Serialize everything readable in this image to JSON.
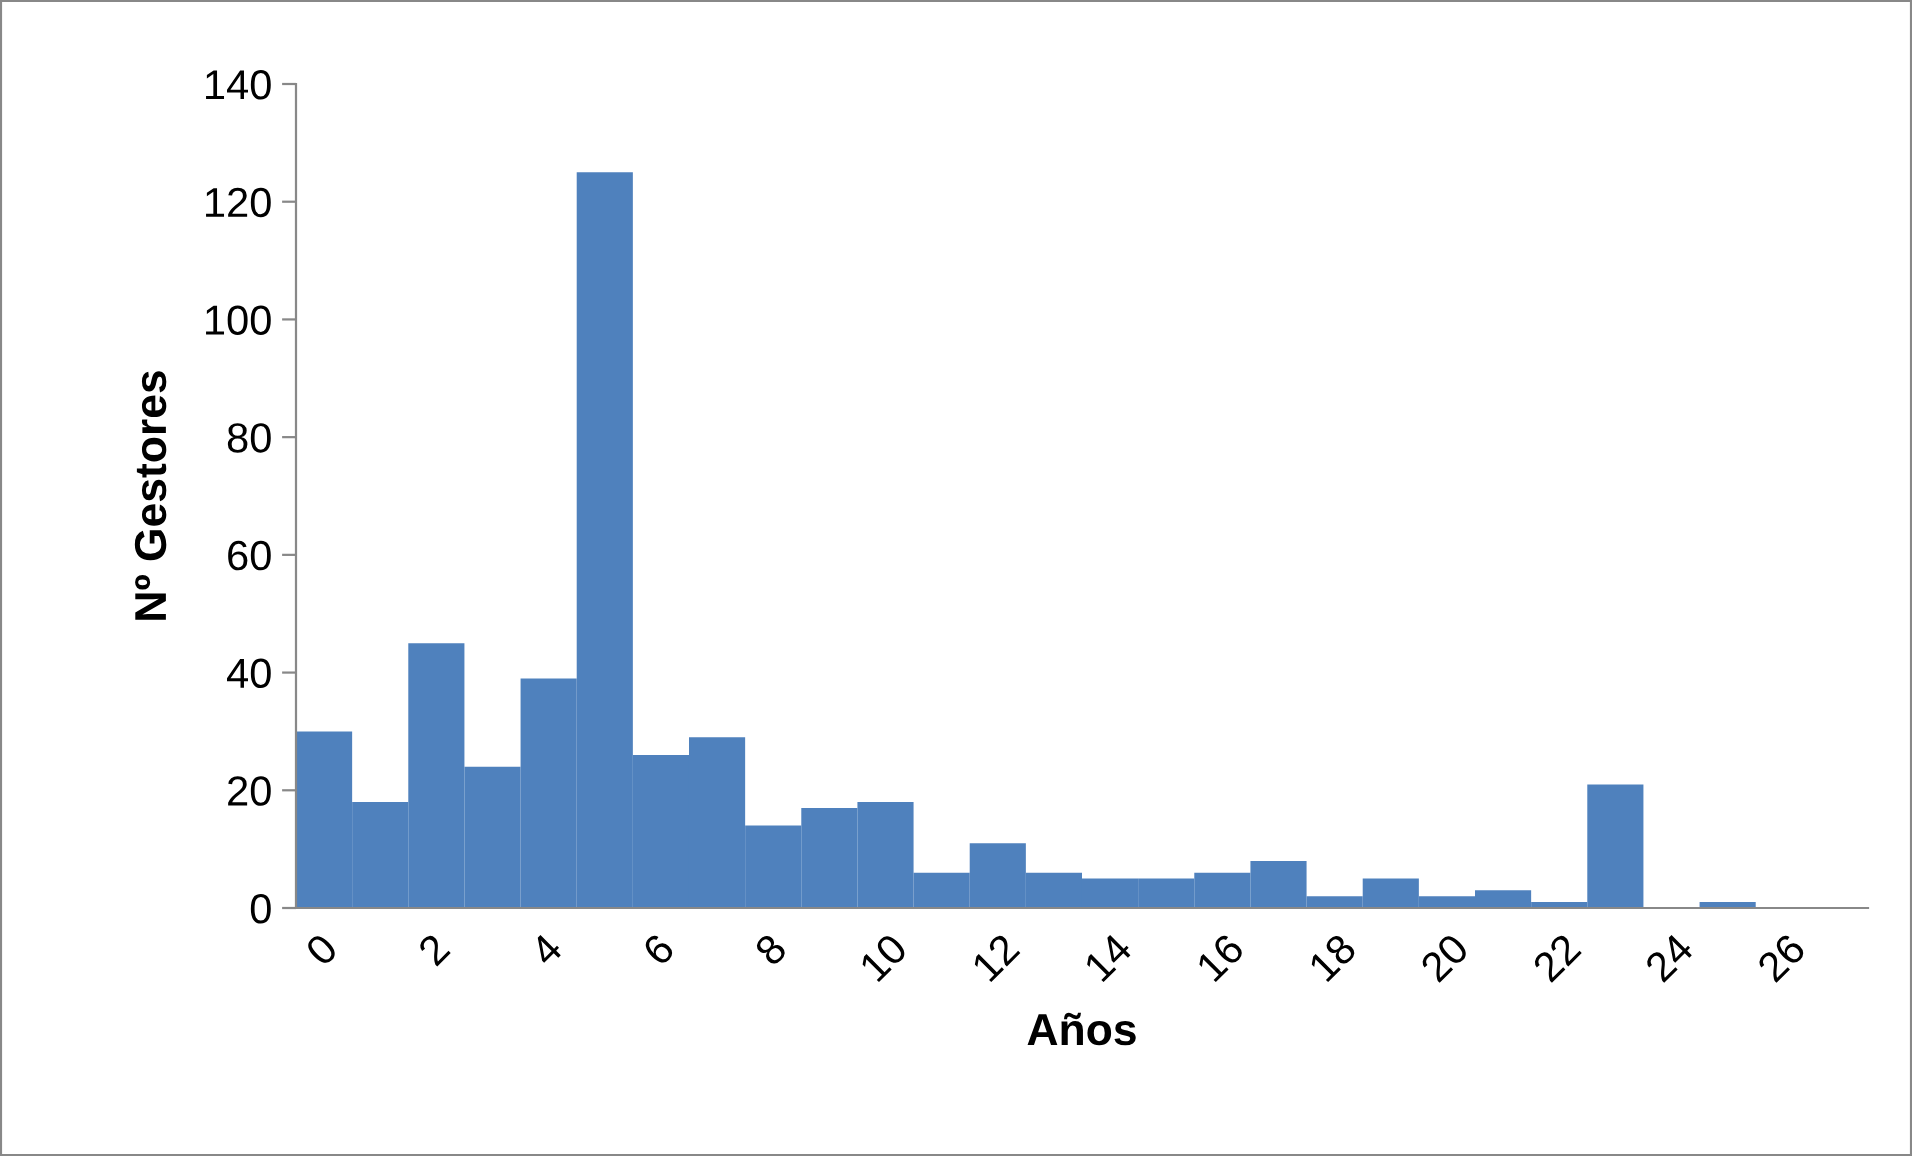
{
  "chart_data": {
    "type": "bar",
    "xlabel": "Años",
    "ylabel": "Nº Gestores",
    "categories": [
      "0",
      null,
      "2",
      null,
      "4",
      null,
      "6",
      null,
      "8",
      null,
      "10",
      null,
      "12",
      null,
      "14",
      null,
      "16",
      null,
      "18",
      null,
      "20",
      null,
      "22",
      null,
      "24",
      null,
      "26",
      null
    ],
    "values": [
      30,
      18,
      45,
      24,
      39,
      125,
      26,
      29,
      14,
      17,
      18,
      6,
      11,
      6,
      5,
      5,
      6,
      8,
      2,
      5,
      2,
      3,
      1,
      21,
      0,
      1,
      0,
      0
    ],
    "color": "#4f81bd",
    "ylim": [
      0,
      140
    ],
    "yticks": [
      0,
      20,
      40,
      60,
      80,
      100,
      120,
      140
    ],
    "grid": false,
    "legend": false
  }
}
